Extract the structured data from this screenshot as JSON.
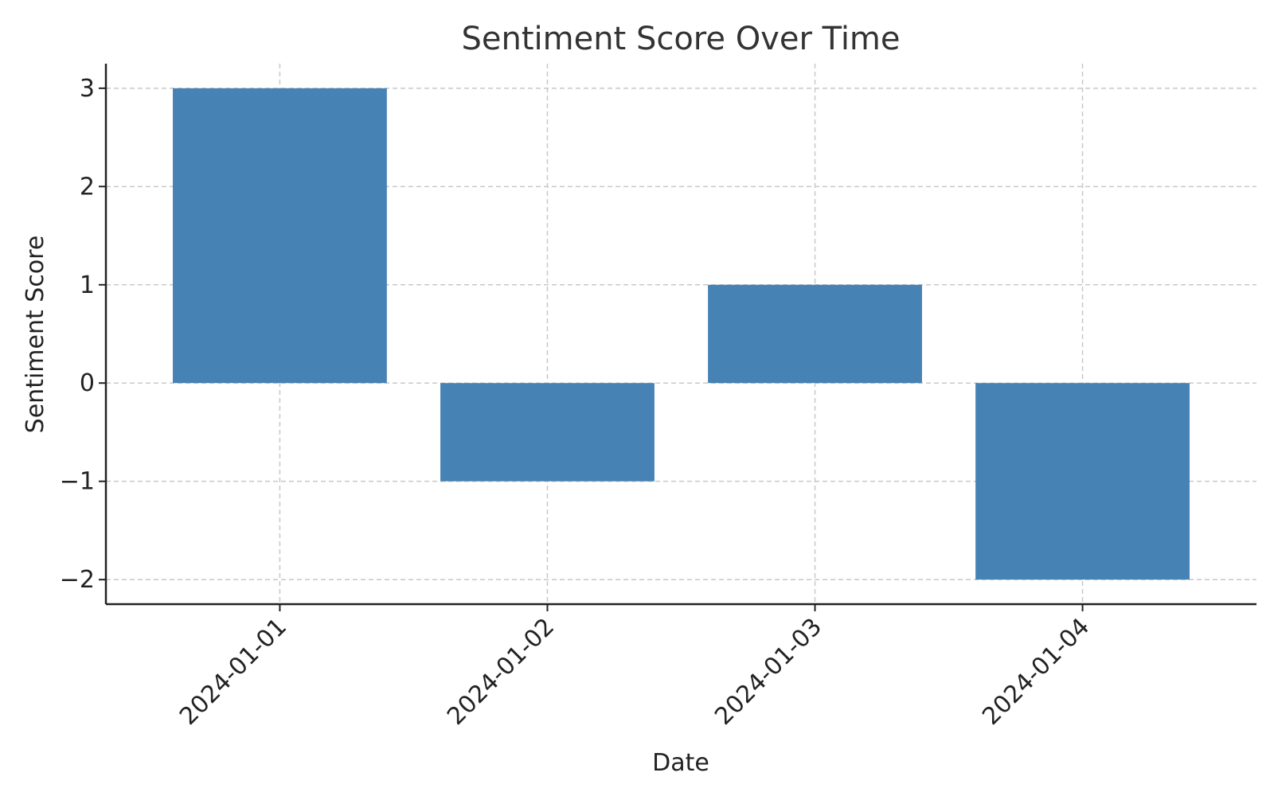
{
  "chart_data": {
    "type": "bar",
    "title": "Sentiment Score Over Time",
    "xlabel": "Date",
    "ylabel": "Sentiment Score",
    "categories": [
      "2024-01-01",
      "2024-01-02",
      "2024-01-03",
      "2024-01-04"
    ],
    "values": [
      3,
      -1,
      1,
      -2
    ],
    "y_ticks": [
      -2,
      -1,
      0,
      1,
      2,
      3
    ],
    "y_tick_labels": [
      "−2",
      "−1",
      "0",
      "1",
      "2",
      "3"
    ],
    "ylim": [
      -2.25,
      3.25
    ],
    "grid": true,
    "bar_color": "#4682b4"
  }
}
